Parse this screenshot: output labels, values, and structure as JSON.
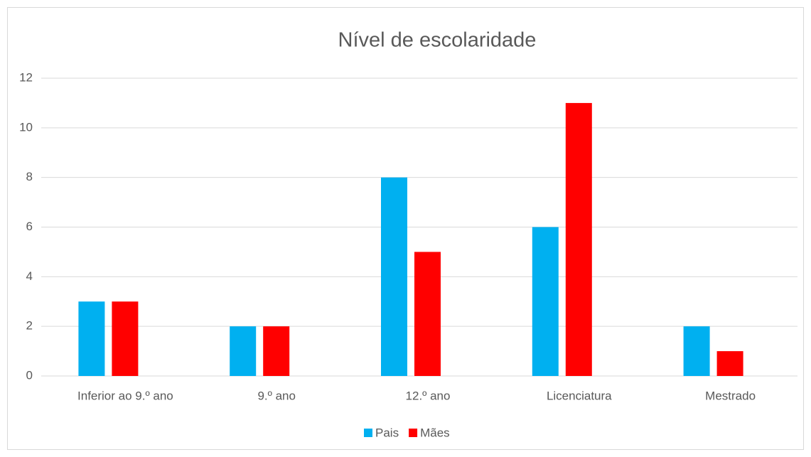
{
  "chart_data": {
    "type": "bar",
    "title": "Nível de escolaridade",
    "categories": [
      "Inferior ao 9.º ano",
      "9.º ano",
      "12.º ano",
      "Licenciatura",
      "Mestrado"
    ],
    "series": [
      {
        "name": "Pais",
        "color": "#00b0f0",
        "values": [
          3,
          2,
          8,
          6,
          2
        ]
      },
      {
        "name": "Mães",
        "color": "#ff0000",
        "values": [
          3,
          2,
          5,
          11,
          1
        ]
      }
    ],
    "ylim": [
      0,
      12
    ],
    "yticks": [
      0,
      2,
      4,
      6,
      8,
      10,
      12
    ],
    "grid": true,
    "legend": "bottom"
  }
}
